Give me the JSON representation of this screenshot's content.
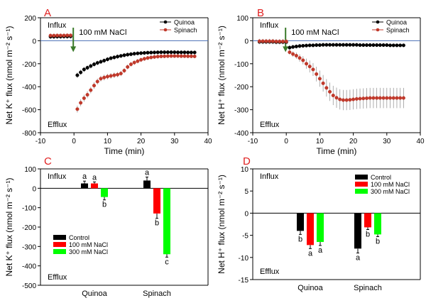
{
  "chart_data": [
    {
      "panel": "A",
      "type": "scatter",
      "xlabel": "Time (min)",
      "ylabel": "Net K⁺ flux (nmol m⁻² s⁻¹)",
      "xlim": [
        -10,
        40
      ],
      "ylim": [
        -800,
        200
      ],
      "xticks": [
        "-10",
        "0",
        "10",
        "20",
        "30",
        "40"
      ],
      "yticks": [
        "-800",
        "-600",
        "-400",
        "-200",
        "0",
        "200"
      ],
      "annotations": {
        "top": "Influx",
        "bottom": "Efflux",
        "treatment": "100 mM NaCl"
      },
      "zero_line": true,
      "legend_position": "top-right",
      "series": [
        {
          "name": "Quinoa",
          "color": "#000000",
          "points": [
            [
              -7,
              35
            ],
            [
              -6,
              35
            ],
            [
              -5,
              36
            ],
            [
              -4,
              36
            ],
            [
              -3,
              37
            ],
            [
              -2,
              37
            ],
            [
              -1,
              38
            ],
            [
              1,
              -300
            ],
            [
              2,
              -275
            ],
            [
              3,
              -250
            ],
            [
              4,
              -235
            ],
            [
              5,
              -220
            ],
            [
              6,
              -205
            ],
            [
              7,
              -193
            ],
            [
              8,
              -183
            ],
            [
              9,
              -173
            ],
            [
              10,
              -162
            ],
            [
              11,
              -152
            ],
            [
              12,
              -145
            ],
            [
              13,
              -138
            ],
            [
              14,
              -132
            ],
            [
              15,
              -126
            ],
            [
              16,
              -121
            ],
            [
              17,
              -117
            ],
            [
              18,
              -113
            ],
            [
              19,
              -110
            ],
            [
              20,
              -108
            ],
            [
              21,
              -106
            ],
            [
              22,
              -104
            ],
            [
              23,
              -103
            ],
            [
              24,
              -102
            ],
            [
              25,
              -101
            ],
            [
              26,
              -100
            ],
            [
              27,
              -100
            ],
            [
              28,
              -100
            ],
            [
              29,
              -100
            ],
            [
              30,
              -100
            ],
            [
              31,
              -101
            ],
            [
              32,
              -101
            ],
            [
              33,
              -101
            ],
            [
              34,
              -102
            ],
            [
              35,
              -102
            ],
            [
              36,
              -102
            ]
          ],
          "errors": [
            20,
            20,
            20,
            20,
            20,
            20,
            20,
            25,
            24,
            23,
            22,
            22,
            21,
            21,
            20,
            20,
            20,
            19,
            19,
            19,
            18,
            18,
            18,
            18,
            18,
            17,
            17,
            17,
            17,
            17,
            17,
            17,
            17,
            16,
            16,
            16,
            16,
            16,
            16,
            16,
            16,
            16,
            16
          ]
        },
        {
          "name": "Spinach",
          "color": "#c0392b",
          "points": [
            [
              -7,
              45
            ],
            [
              -6,
              45
            ],
            [
              -5,
              46
            ],
            [
              -4,
              46
            ],
            [
              -3,
              46
            ],
            [
              -2,
              47
            ],
            [
              -1,
              47
            ],
            [
              1,
              -595
            ],
            [
              2,
              -540
            ],
            [
              3,
              -500
            ],
            [
              4,
              -470
            ],
            [
              5,
              -430
            ],
            [
              6,
              -390
            ],
            [
              7,
              -355
            ],
            [
              8,
              -330
            ],
            [
              9,
              -320
            ],
            [
              10,
              -312
            ],
            [
              11,
              -306
            ],
            [
              12,
              -300
            ],
            [
              13,
              -295
            ],
            [
              14,
              -285
            ],
            [
              15,
              -260
            ],
            [
              16,
              -228
            ],
            [
              17,
              -205
            ],
            [
              18,
              -190
            ],
            [
              19,
              -178
            ],
            [
              20,
              -166
            ],
            [
              21,
              -157
            ],
            [
              22,
              -150
            ],
            [
              23,
              -145
            ],
            [
              24,
              -141
            ],
            [
              25,
              -138
            ],
            [
              26,
              -136
            ],
            [
              27,
              -135
            ],
            [
              28,
              -134
            ],
            [
              29,
              -133
            ],
            [
              30,
              -133
            ],
            [
              31,
              -133
            ],
            [
              32,
              -134
            ],
            [
              33,
              -134
            ],
            [
              34,
              -135
            ],
            [
              35,
              -135
            ],
            [
              36,
              -136
            ]
          ],
          "errors": [
            12,
            12,
            12,
            12,
            12,
            12,
            12,
            30,
            30,
            30,
            30,
            28,
            28,
            26,
            25,
            25,
            24,
            24,
            24,
            23,
            23,
            22,
            21,
            20,
            20,
            19,
            19,
            18,
            18,
            18,
            17,
            17,
            17,
            17,
            16,
            16,
            16,
            16,
            16,
            16,
            16,
            16,
            16
          ]
        }
      ]
    },
    {
      "panel": "B",
      "type": "scatter",
      "xlabel": "Time (min)",
      "ylabel": "Net H⁺ flux (nmol m⁻² s⁻¹)",
      "xlim": [
        -10,
        40
      ],
      "ylim": [
        -400,
        100
      ],
      "xticks": [
        "-10",
        "0",
        "10",
        "20",
        "30",
        "40"
      ],
      "yticks": [
        "-400",
        "-300",
        "-200",
        "-100",
        "0",
        "100"
      ],
      "annotations": {
        "top": "Influx",
        "bottom": "Efflux",
        "treatment": "100 mM NaCl"
      },
      "zero_line": true,
      "legend_position": "top-right",
      "series": [
        {
          "name": "Quinoa",
          "color": "#000000",
          "points": [
            [
              -8,
              -5
            ],
            [
              -7,
              -5
            ],
            [
              -6,
              -5
            ],
            [
              -5,
              -5
            ],
            [
              -4,
              -5
            ],
            [
              -3,
              -6
            ],
            [
              -2,
              -6
            ],
            [
              -1,
              -6
            ],
            [
              0,
              -6
            ],
            [
              1,
              -30
            ],
            [
              2,
              -27
            ],
            [
              3,
              -25
            ],
            [
              4,
              -23
            ],
            [
              5,
              -22
            ],
            [
              6,
              -21
            ],
            [
              7,
              -20
            ],
            [
              8,
              -20
            ],
            [
              9,
              -19
            ],
            [
              10,
              -19
            ],
            [
              11,
              -18
            ],
            [
              12,
              -18
            ],
            [
              13,
              -18
            ],
            [
              14,
              -18
            ],
            [
              15,
              -18
            ],
            [
              16,
              -18
            ],
            [
              17,
              -18
            ],
            [
              18,
              -18
            ],
            [
              19,
              -18
            ],
            [
              20,
              -18
            ],
            [
              21,
              -18
            ],
            [
              22,
              -19
            ],
            [
              23,
              -19
            ],
            [
              24,
              -19
            ],
            [
              25,
              -19
            ],
            [
              26,
              -19
            ],
            [
              27,
              -19
            ],
            [
              28,
              -19
            ],
            [
              29,
              -19
            ],
            [
              30,
              -19
            ],
            [
              31,
              -20
            ],
            [
              32,
              -20
            ],
            [
              33,
              -20
            ],
            [
              34,
              -20
            ],
            [
              35,
              -20
            ]
          ],
          "errors": [
            10,
            10,
            10,
            10,
            10,
            10,
            10,
            10,
            10,
            10,
            9,
            9,
            9,
            8,
            8,
            8,
            8,
            8,
            8,
            8,
            7,
            7,
            7,
            7,
            7,
            7,
            7,
            7,
            7,
            7,
            7,
            7,
            7,
            7,
            7,
            7,
            7,
            7,
            7,
            7,
            7,
            7,
            7,
            7
          ]
        },
        {
          "name": "Spinach",
          "color": "#c0392b",
          "points": [
            [
              -8,
              -2
            ],
            [
              -7,
              -2
            ],
            [
              -6,
              -2
            ],
            [
              -5,
              -2
            ],
            [
              -4,
              -2
            ],
            [
              -3,
              -3
            ],
            [
              -2,
              -3
            ],
            [
              -1,
              -3
            ],
            [
              0,
              -3
            ],
            [
              1,
              -50
            ],
            [
              2,
              -58
            ],
            [
              3,
              -65
            ],
            [
              4,
              -75
            ],
            [
              5,
              -85
            ],
            [
              6,
              -100
            ],
            [
              7,
              -112
            ],
            [
              8,
              -125
            ],
            [
              9,
              -145
            ],
            [
              10,
              -165
            ],
            [
              11,
              -185
            ],
            [
              12,
              -205
            ],
            [
              13,
              -222
            ],
            [
              14,
              -238
            ],
            [
              15,
              -248
            ],
            [
              16,
              -255
            ],
            [
              17,
              -258
            ],
            [
              18,
              -258
            ],
            [
              19,
              -257
            ],
            [
              20,
              -255
            ],
            [
              21,
              -253
            ],
            [
              22,
              -252
            ],
            [
              23,
              -251
            ],
            [
              24,
              -250
            ],
            [
              25,
              -249
            ],
            [
              26,
              -249
            ],
            [
              27,
              -249
            ],
            [
              28,
              -249
            ],
            [
              29,
              -249
            ],
            [
              30,
              -249
            ],
            [
              31,
              -249
            ],
            [
              32,
              -249
            ],
            [
              33,
              -249
            ],
            [
              34,
              -249
            ],
            [
              35,
              -249
            ]
          ],
          "errors": [
            10,
            10,
            10,
            10,
            10,
            10,
            10,
            10,
            10,
            10,
            12,
            14,
            16,
            18,
            22,
            26,
            28,
            32,
            35,
            36,
            38,
            40,
            42,
            44,
            44,
            44,
            44,
            44,
            44,
            44,
            44,
            44,
            44,
            44,
            44,
            44,
            44,
            44,
            44,
            44,
            44,
            44,
            44,
            44
          ]
        }
      ]
    },
    {
      "panel": "C",
      "type": "bar",
      "ylabel": "Net K⁺ flux (nmol m⁻² s⁻¹)",
      "ylim": [
        -500,
        100
      ],
      "yticks": [
        "-500",
        "-400",
        "-300",
        "-200",
        "-100",
        "0",
        "100"
      ],
      "categories": [
        "Quinoa",
        "Spinach"
      ],
      "annotations": {
        "top": "Influx",
        "bottom": "Efflux"
      },
      "legend_position": "bottom-left",
      "series": [
        {
          "name": "Control",
          "color": "#000000",
          "values": [
            25,
            40
          ],
          "errors": [
            12,
            18
          ],
          "letters": [
            "a",
            "a"
          ]
        },
        {
          "name": "100 mM NaCl",
          "color": "#ff0000",
          "values": [
            25,
            -130
          ],
          "errors": [
            8,
            25
          ],
          "letters": [
            "a",
            "b"
          ]
        },
        {
          "name": "300 mM NaCl",
          "color": "#00ff00",
          "values": [
            -45,
            -340
          ],
          "errors": [
            15,
            15
          ],
          "letters": [
            "b",
            "c"
          ]
        }
      ]
    },
    {
      "panel": "D",
      "type": "bar",
      "ylabel": "Net H⁺ flux (nmol m⁻² s⁻¹)",
      "ylim": [
        -15,
        10
      ],
      "yticks": [
        "-15",
        "-10",
        "-5",
        "0",
        "5",
        "10"
      ],
      "categories": [
        "Quinoa",
        "Spinach"
      ],
      "annotations": {
        "top": "Influx",
        "bottom": "Efflux"
      },
      "legend_position": "top-right",
      "series": [
        {
          "name": "Control",
          "color": "#000000",
          "values": [
            -4,
            -8
          ],
          "errors": [
            0.8,
            1.0
          ],
          "letters": [
            "b",
            "a"
          ]
        },
        {
          "name": "100 mM NaCl",
          "color": "#ff0000",
          "values": [
            -7.2,
            -3.2
          ],
          "errors": [
            0.8,
            0.5
          ],
          "letters": [
            "a",
            "b"
          ]
        },
        {
          "name": "300 mM NaCl",
          "color": "#00ff00",
          "values": [
            -6.5,
            -4.8
          ],
          "errors": [
            0.8,
            0.5
          ],
          "letters": [
            "a",
            "b"
          ]
        }
      ]
    }
  ]
}
